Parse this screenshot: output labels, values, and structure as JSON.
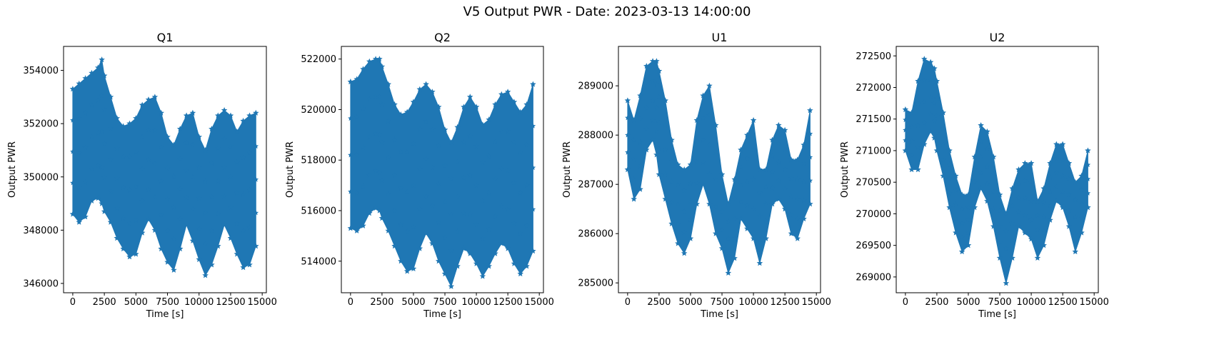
{
  "suptitle": "V5 Output PWR - Date: 2023-03-13 14:00:00",
  "color": "#1f77b4",
  "marker": "star",
  "chart_data": [
    {
      "type": "scatter",
      "title": "Q1",
      "xlabel": "Time [s]",
      "ylabel": "Output PWR",
      "xlim": [
        -730,
        15330
      ],
      "ylim": [
        345650,
        354900
      ],
      "xticks": [
        0,
        2500,
        5000,
        7500,
        10000,
        12500,
        15000
      ],
      "yticks": [
        346000,
        348000,
        350000,
        352000,
        354000
      ],
      "x": [
        0,
        500,
        1000,
        1500,
        2000,
        2300,
        2500,
        3000,
        3500,
        4000,
        4500,
        5000,
        5500,
        6000,
        6500,
        7000,
        7500,
        8000,
        8500,
        9000,
        9500,
        10000,
        10500,
        11000,
        11500,
        12000,
        12500,
        13000,
        13500,
        14000,
        14500
      ],
      "upper": [
        353300,
        353500,
        353700,
        353900,
        354100,
        354400,
        353800,
        353000,
        352200,
        351900,
        352000,
        352200,
        352700,
        352900,
        353000,
        352400,
        351500,
        351200,
        351800,
        352300,
        352400,
        351500,
        351000,
        351800,
        352300,
        352500,
        352300,
        351700,
        352100,
        352300,
        352400
      ],
      "lower": [
        348600,
        348300,
        348500,
        349100,
        349200,
        349000,
        348700,
        348300,
        347700,
        347300,
        347000,
        347100,
        347900,
        348400,
        348000,
        347300,
        346800,
        346500,
        347300,
        348200,
        347600,
        346900,
        346300,
        346700,
        347400,
        348200,
        347700,
        347100,
        346600,
        346700,
        347400
      ]
    },
    {
      "type": "scatter",
      "title": "Q2",
      "xlabel": "Time [s]",
      "ylabel": "Output PWR",
      "xlim": [
        -730,
        15330
      ],
      "ylim": [
        512750,
        522500
      ],
      "xticks": [
        0,
        2500,
        5000,
        7500,
        10000,
        12500,
        15000
      ],
      "yticks": [
        514000,
        516000,
        518000,
        520000,
        522000
      ],
      "x": [
        0,
        500,
        1000,
        1500,
        2000,
        2300,
        2500,
        3000,
        3500,
        4000,
        4500,
        5000,
        5500,
        6000,
        6500,
        7000,
        7500,
        8000,
        8500,
        9000,
        9500,
        10000,
        10500,
        11000,
        11500,
        12000,
        12500,
        13000,
        13500,
        14000,
        14500
      ],
      "upper": [
        521100,
        521200,
        521600,
        521900,
        522000,
        522000,
        521700,
        521000,
        520200,
        519800,
        519900,
        520300,
        520800,
        521000,
        520700,
        520100,
        519200,
        518700,
        519300,
        520100,
        520500,
        520100,
        519400,
        519600,
        520200,
        520600,
        520700,
        520300,
        519900,
        520200,
        521000
      ],
      "lower": [
        515300,
        515200,
        515400,
        515900,
        516100,
        516000,
        515700,
        515200,
        514600,
        514000,
        513600,
        513700,
        514500,
        515100,
        514700,
        514000,
        513500,
        513000,
        513800,
        514500,
        514300,
        513900,
        513400,
        513800,
        514300,
        514700,
        514500,
        513900,
        513500,
        513800,
        514400
      ]
    },
    {
      "type": "scatter",
      "title": "U1",
      "xlabel": "Time [s]",
      "ylabel": "Output PWR",
      "xlim": [
        -730,
        15330
      ],
      "ylim": [
        284800,
        289800
      ],
      "xticks": [
        0,
        2500,
        5000,
        7500,
        10000,
        12500,
        15000
      ],
      "yticks": [
        285000,
        286000,
        287000,
        288000,
        289000
      ],
      "x": [
        0,
        500,
        1000,
        1500,
        2000,
        2300,
        2500,
        3000,
        3500,
        4000,
        4500,
        5000,
        5500,
        6000,
        6500,
        7000,
        7500,
        8000,
        8500,
        9000,
        9500,
        10000,
        10500,
        11000,
        11500,
        12000,
        12500,
        13000,
        13500,
        14000,
        14500
      ],
      "upper": [
        288700,
        288300,
        288800,
        289400,
        289500,
        289500,
        289300,
        288700,
        287900,
        287400,
        287300,
        287400,
        288300,
        288800,
        289000,
        288200,
        287200,
        286600,
        287100,
        287700,
        288000,
        288300,
        287300,
        287300,
        287900,
        288200,
        288100,
        287500,
        287500,
        287800,
        288500
      ],
      "lower": [
        287300,
        286700,
        286900,
        287700,
        287900,
        287600,
        287200,
        286700,
        286200,
        285800,
        285600,
        285900,
        286600,
        287000,
        286600,
        286000,
        285700,
        285200,
        285500,
        286300,
        286100,
        285900,
        285400,
        285900,
        286600,
        286700,
        286500,
        286000,
        285900,
        286300,
        286600
      ]
    },
    {
      "type": "scatter",
      "title": "U2",
      "xlabel": "Time [s]",
      "ylabel": "Output PWR",
      "xlim": [
        -730,
        15330
      ],
      "ylim": [
        268750,
        272650
      ],
      "xticks": [
        0,
        2500,
        5000,
        7500,
        10000,
        12500,
        15000
      ],
      "yticks": [
        269000,
        269500,
        270000,
        270500,
        271000,
        271500,
        272000,
        272500
      ],
      "x": [
        0,
        500,
        1000,
        1500,
        2000,
        2300,
        2500,
        3000,
        3500,
        4000,
        4500,
        5000,
        5500,
        6000,
        6500,
        7000,
        7500,
        8000,
        8500,
        9000,
        9500,
        10000,
        10500,
        11000,
        11500,
        12000,
        12500,
        13000,
        13500,
        14000,
        14500
      ],
      "upper": [
        271650,
        271600,
        272100,
        272450,
        272400,
        272300,
        272100,
        271600,
        271000,
        270600,
        270300,
        270300,
        270900,
        271400,
        271300,
        270900,
        270300,
        270000,
        270400,
        270700,
        270800,
        270800,
        270200,
        270400,
        270800,
        271100,
        271100,
        270800,
        270500,
        270600,
        271000
      ],
      "lower": [
        271000,
        270700,
        270700,
        271100,
        271300,
        271200,
        271000,
        270600,
        270100,
        269700,
        269400,
        269500,
        270100,
        270400,
        270200,
        269800,
        269300,
        268900,
        269300,
        269800,
        269700,
        269600,
        269300,
        269500,
        269900,
        270200,
        270100,
        269800,
        269400,
        269700,
        270100
      ]
    }
  ]
}
